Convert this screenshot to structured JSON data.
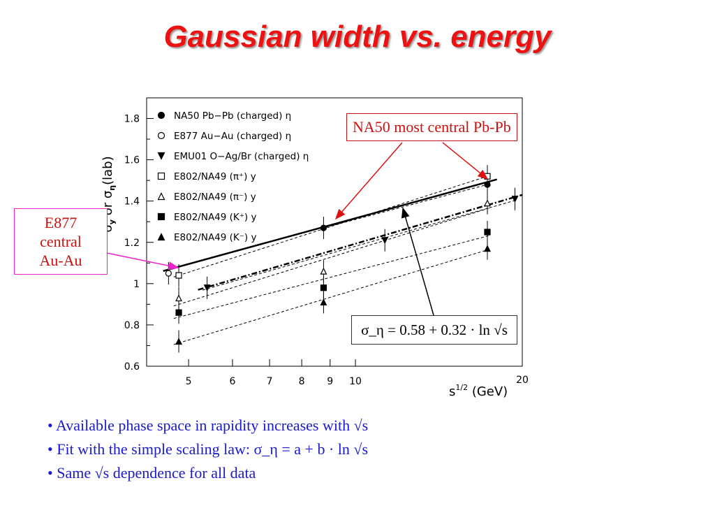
{
  "title": "Gaussian width vs. energy",
  "chart_data": {
    "type": "scatter",
    "xscale": "log",
    "xlim": [
      4.2,
      20
    ],
    "ylim": [
      0.6,
      1.9
    ],
    "xlabel": "s^{1/2} (GeV)",
    "ylabel": "σ_y or σ_η(lab)",
    "x_ticks": [
      5,
      6,
      7,
      8,
      9,
      10,
      20
    ],
    "y_ticks": [
      0.6,
      0.8,
      1,
      1.2,
      1.4,
      1.6,
      1.8
    ],
    "x_tick_labels": [
      "5",
      "6",
      "7",
      "8",
      "9",
      "10",
      "20"
    ],
    "y_tick_labels": [
      "0.6",
      "0.8",
      "1",
      "1.2",
      "1.4",
      "1.6",
      "1.8"
    ],
    "legend_position": "top-left",
    "series": [
      {
        "name": "NA50 Pb−Pb (charged) η",
        "marker": "circle-filled",
        "x": [
          8.76,
          17.3
        ],
        "y": [
          1.27,
          1.48
        ]
      },
      {
        "name": "E877 Au−Au (charged) η",
        "marker": "circle-open",
        "x": [
          4.6
        ],
        "y": [
          1.05
        ]
      },
      {
        "name": "EMU01 O−Ag/Br (charged) η",
        "marker": "triangle-down-filled",
        "x": [
          5.4,
          11.3,
          19.4
        ],
        "y": [
          0.98,
          1.21,
          1.41
        ]
      },
      {
        "name": "E802/NA49 (π⁺) y",
        "marker": "square-open",
        "x": [
          4.8,
          17.3
        ],
        "y": [
          1.04,
          1.52
        ]
      },
      {
        "name": "E802/NA49 (π⁻) y",
        "marker": "triangle-up-open",
        "x": [
          4.8,
          8.76,
          17.3
        ],
        "y": [
          0.93,
          1.06,
          1.39
        ]
      },
      {
        "name": "E802/NA49 (K⁺) y",
        "marker": "square-filled",
        "x": [
          4.8,
          8.76,
          17.3
        ],
        "y": [
          0.86,
          0.98,
          1.25
        ]
      },
      {
        "name": "E802/NA49 (K⁻) y",
        "marker": "triangle-up-filled",
        "x": [
          4.8,
          8.76,
          17.3
        ],
        "y": [
          0.72,
          0.91,
          1.17
        ]
      }
    ],
    "fit_line": {
      "a": 0.58,
      "b": 0.32,
      "x_range": [
        4.5,
        18.0
      ]
    },
    "annotations": {
      "na50": "NA50 most central Pb-Pb",
      "e877": [
        "E877",
        "central",
        "Au-Au"
      ],
      "equation": "σ_η = 0.58 + 0.32 · ln √s"
    }
  },
  "bullets": [
    "• Available phase space in rapidity increases with √s",
    "• Fit with the simple scaling law: σ_η = a + b · ln √s",
    "• Same √s dependence for all data"
  ]
}
